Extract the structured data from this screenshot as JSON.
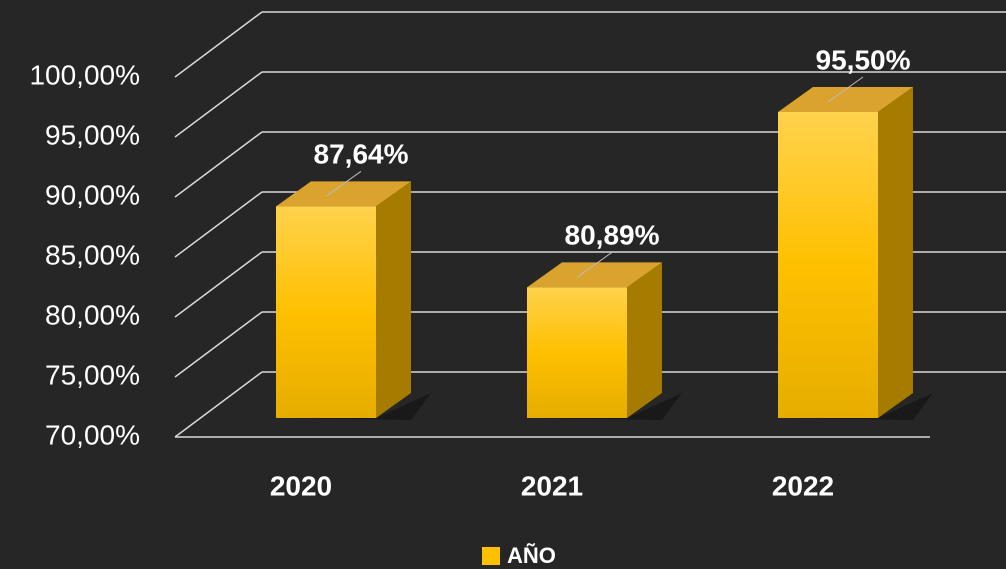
{
  "chart_data": {
    "type": "bar3d",
    "categories": [
      "2020",
      "2021",
      "2022"
    ],
    "series": [
      {
        "name": "AÑO",
        "color": "#ffc000",
        "values": [
          87.64,
          80.89,
          95.5
        ],
        "value_labels": [
          "87,64%",
          "80,89%",
          "95,50%"
        ]
      }
    ],
    "ylim": [
      70,
      100
    ],
    "yticks": [
      {
        "value": 70,
        "label": "70,00%"
      },
      {
        "value": 75,
        "label": "75,00%"
      },
      {
        "value": 80,
        "label": "80,00%"
      },
      {
        "value": 85,
        "label": "85,00%"
      },
      {
        "value": 90,
        "label": "90,00%"
      },
      {
        "value": 95,
        "label": "95,00%"
      },
      {
        "value": 100,
        "label": "100,00%"
      }
    ],
    "grid": true,
    "legend": "bottom"
  }
}
